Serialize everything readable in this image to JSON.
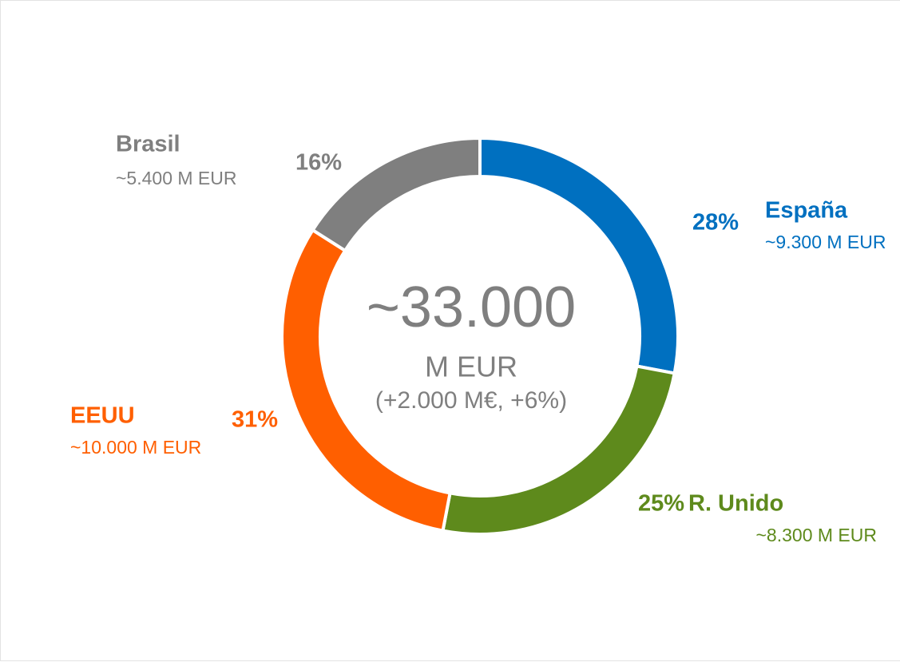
{
  "chart_data": {
    "type": "donut",
    "categories": [
      "España",
      "R. Unido",
      "EEUU",
      "Brasil"
    ],
    "values": [
      28,
      25,
      31,
      16
    ],
    "value_labels": [
      "28%",
      "25%",
      "31%",
      "16%"
    ],
    "amounts": [
      "~9.300 M EUR",
      "~8.300 M EUR",
      "~10.000 M EUR",
      "~5.400 M EUR"
    ],
    "colors": [
      "#0070c0",
      "#5e8a1c",
      "#ff5f00",
      "#7f7f7f"
    ],
    "center": {
      "total": "~33.000",
      "unit": "M EUR",
      "change": "(+2.000 M€, +6%)"
    }
  }
}
